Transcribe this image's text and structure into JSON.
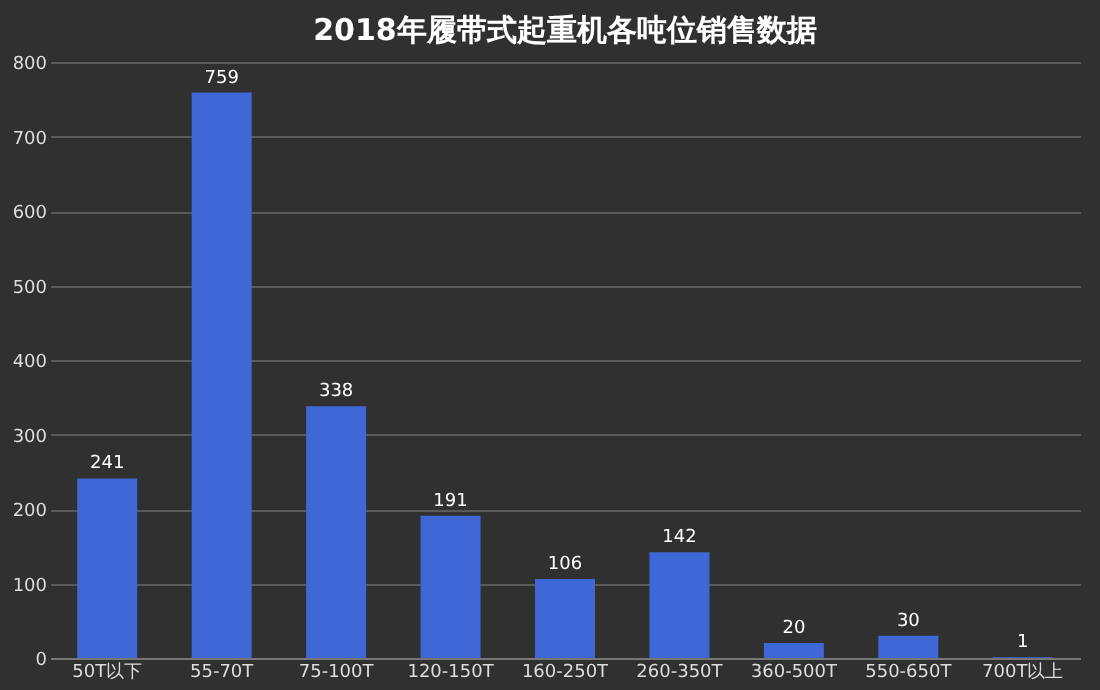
{
  "chart_data": {
    "type": "bar",
    "title": "2018年履带式起重机各吨位销售数据",
    "categories": [
      "50T以下",
      "55-70T",
      "75-100T",
      "120-150T",
      "160-250T",
      "260-350T",
      "360-500T",
      "550-650T",
      "700T以上"
    ],
    "values": [
      241,
      759,
      338,
      191,
      106,
      142,
      20,
      30,
      1
    ],
    "color": "#3f68d6",
    "ylim": [
      0,
      800
    ],
    "yticks": [
      0,
      100,
      200,
      300,
      400,
      500,
      600,
      700,
      800
    ],
    "grid": "y",
    "data_labels": true
  }
}
